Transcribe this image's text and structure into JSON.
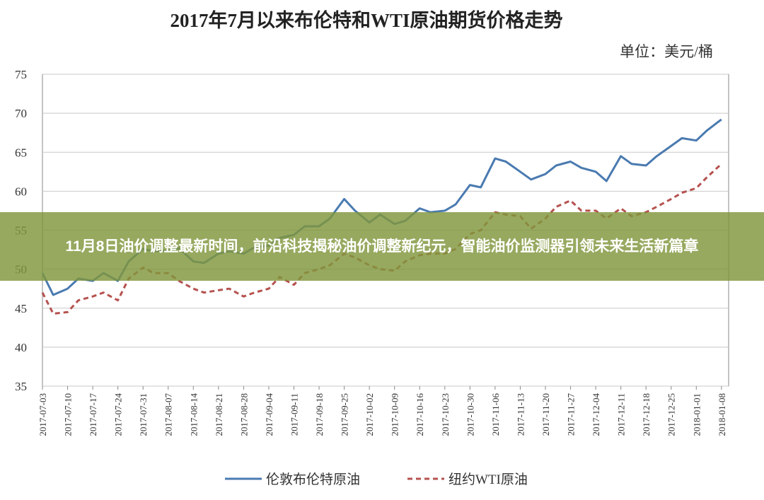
{
  "chart_data": {
    "type": "line",
    "title": "2017年7月以来布伦特和WTI原油期货价格走势",
    "y_label": "单位：美元/桶",
    "x": [
      "2017-07-03",
      "2017-07-06",
      "2017-07-10",
      "2017-07-13",
      "2017-07-17",
      "2017-07-20",
      "2017-07-24",
      "2017-07-27",
      "2017-07-31",
      "2017-08-03",
      "2017-08-07",
      "2017-08-10",
      "2017-08-14",
      "2017-08-17",
      "2017-08-21",
      "2017-08-24",
      "2017-08-28",
      "2017-08-31",
      "2017-09-04",
      "2017-09-07",
      "2017-09-11",
      "2017-09-14",
      "2017-09-18",
      "2017-09-21",
      "2017-09-25",
      "2017-09-28",
      "2017-10-02",
      "2017-10-05",
      "2017-10-09",
      "2017-10-12",
      "2017-10-16",
      "2017-10-19",
      "2017-10-23",
      "2017-10-26",
      "2017-10-30",
      "2017-11-02",
      "2017-11-06",
      "2017-11-09",
      "2017-11-13",
      "2017-11-16",
      "2017-11-20",
      "2017-11-23",
      "2017-11-27",
      "2017-11-30",
      "2017-12-04",
      "2017-12-07",
      "2017-12-11",
      "2017-12-14",
      "2017-12-18",
      "2017-12-21",
      "2017-12-25",
      "2017-12-28",
      "2018-01-01",
      "2018-01-04",
      "2018-01-08"
    ],
    "series": [
      {
        "name": "伦敦布伦特原油",
        "color": "#4a7ab0",
        "dash": false,
        "values": [
          49.5,
          46.7,
          47.5,
          48.8,
          48.5,
          49.5,
          48.5,
          51,
          52.6,
          52.3,
          52.4,
          52.7,
          51,
          50.8,
          52,
          52.3,
          52,
          52.8,
          53,
          54,
          54.4,
          55.5,
          55.5,
          56.5,
          59,
          57.5,
          56,
          57,
          55.8,
          56.2,
          57.8,
          57.3,
          57.5,
          58.3,
          60.8,
          60.5,
          64.2,
          63.8,
          62.5,
          61.5,
          62.2,
          63.3,
          63.8,
          63,
          62.5,
          61.3,
          64.5,
          63.5,
          63.3,
          64.5,
          65.8,
          66.8,
          66.5,
          67.8,
          69.2
        ]
      },
      {
        "name": "纽约WTI原油",
        "color": "#b5524f",
        "dash": true,
        "values": [
          47,
          44.3,
          44.5,
          46,
          46.5,
          47,
          46,
          48.8,
          50.2,
          49.5,
          49.5,
          48.5,
          47.5,
          47,
          47.3,
          47.5,
          46.5,
          47,
          47.5,
          49,
          48,
          49.5,
          50,
          50.5,
          52,
          51.5,
          50.5,
          50,
          49.8,
          51,
          51.8,
          52,
          52,
          52.6,
          54.5,
          55,
          57.3,
          57,
          56.8,
          55.2,
          56.5,
          58,
          58.8,
          57.5,
          57.5,
          56.5,
          57.8,
          56.8,
          57.3,
          58,
          59,
          59.8,
          60.4,
          61.8,
          63.5
        ]
      }
    ],
    "xlim": [
      "2017-07-03",
      "2018-01-10"
    ],
    "xticks": [
      "2017-07-03",
      "2017-07-10",
      "2017-07-17",
      "2017-07-24",
      "2017-07-31",
      "2017-08-07",
      "2017-08-14",
      "2017-08-21",
      "2017-08-28",
      "2017-09-04",
      "2017-09-11",
      "2017-09-18",
      "2017-09-25",
      "2017-10-02",
      "2017-10-09",
      "2017-10-16",
      "2017-10-23",
      "2017-10-30",
      "2017-11-06",
      "2017-11-13",
      "2017-11-20",
      "2017-11-27",
      "2017-12-04",
      "2017-12-11",
      "2017-12-18",
      "2017-12-25",
      "2018-01-01",
      "2018-01-08"
    ],
    "ylim": [
      35,
      75
    ],
    "yticks": [
      35,
      40,
      45,
      50,
      55,
      60,
      65,
      70,
      75
    ],
    "grid": true
  },
  "banner": {
    "headline": "11月8日油价调整最新时间，前沿科技揭秘油价调整新纪元，智能油价监测器引领未来生活新篇章"
  }
}
